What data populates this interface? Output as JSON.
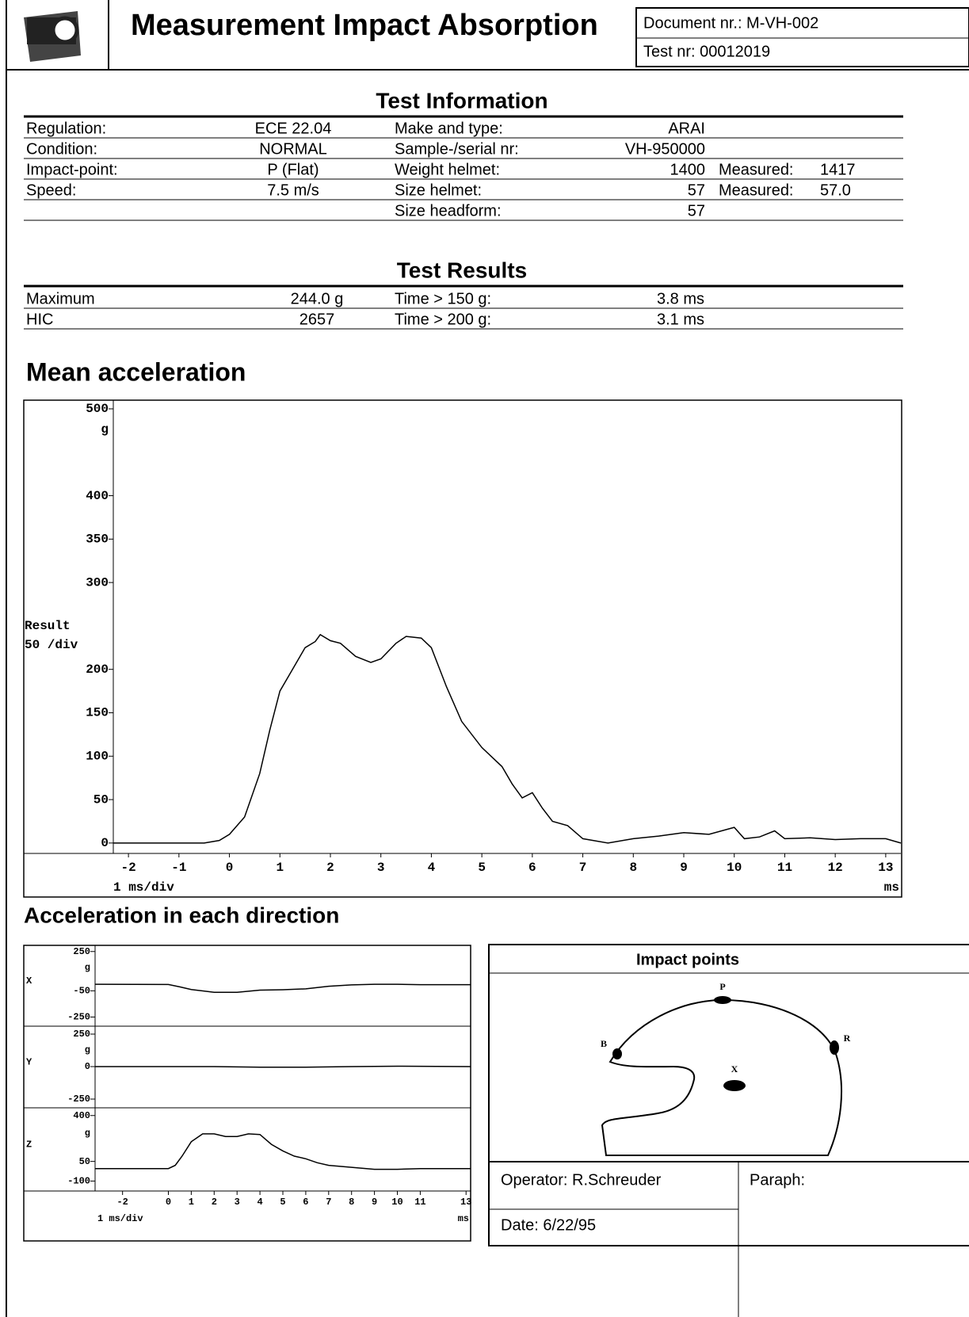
{
  "header": {
    "title": "Measurement Impact Absorption",
    "document_nr": "Document nr.: M-VH-002",
    "test_nr": "Test nr: 00012019"
  },
  "test_information": {
    "title": "Test Information",
    "rows": [
      {
        "label": "Regulation:",
        "value": "ECE 22.04",
        "label2": "Make and type:",
        "value2": "ARAI"
      },
      {
        "label": "Condition:",
        "value": "NORMAL",
        "label2": "Sample-/serial nr:",
        "value2": "VH-950000"
      },
      {
        "label": "Impact-point:",
        "value": "P  (Flat)",
        "label2": "Weight helmet:",
        "value2": "1400",
        "measured_label": "Measured:",
        "measured": "1417"
      },
      {
        "label": "Speed:",
        "value": "7.5  m/s",
        "label2": "Size helmet:",
        "value2": "57",
        "measured_label": "Measured:",
        "measured": "57.0"
      },
      {
        "label2": "Size headform:",
        "value2": "57"
      }
    ]
  },
  "test_results": {
    "title": "Test Results",
    "rows": [
      {
        "label": "Maximum",
        "value": "244.0  g",
        "label2": "Time > 150 g:",
        "value2": "3.8  ms"
      },
      {
        "label": "HIC",
        "value": "2657",
        "label2": "Time > 200 g:",
        "value2": "3.1  ms"
      }
    ]
  },
  "directions_title": "Acceleration in each direction",
  "chart_data": [
    {
      "type": "line",
      "title": "Mean acceleration",
      "color": "#000000",
      "x": [
        -2.3,
        -1,
        -0.5,
        -0.2,
        0,
        0.3,
        0.6,
        0.8,
        1.0,
        1.2,
        1.5,
        1.7,
        1.8,
        2.0,
        2.2,
        2.5,
        2.8,
        3.0,
        3.3,
        3.5,
        3.8,
        4.0,
        4.3,
        4.6,
        5.0,
        5.4,
        5.6,
        5.8,
        6.0,
        6.2,
        6.4,
        6.7,
        7.0,
        7.5,
        8.0,
        8.5,
        9.0,
        9.5,
        10.0,
        10.2,
        10.5,
        10.8,
        11.0,
        11.5,
        12.0,
        12.5,
        13.0,
        13.3
      ],
      "values": [
        0,
        0,
        0,
        3,
        10,
        30,
        80,
        130,
        175,
        195,
        225,
        232,
        240,
        233,
        230,
        215,
        208,
        212,
        230,
        238,
        236,
        225,
        180,
        140,
        110,
        88,
        68,
        52,
        58,
        40,
        25,
        20,
        5,
        0,
        5,
        8,
        12,
        10,
        18,
        5,
        7,
        14,
        5,
        6,
        4,
        5,
        5,
        0
      ],
      "xlim": [
        -2.3,
        13.3
      ],
      "ylim": [
        -12,
        510
      ],
      "xticks": [
        -2,
        -1,
        0,
        1,
        2,
        3,
        4,
        5,
        6,
        7,
        8,
        9,
        10,
        11,
        12,
        13
      ],
      "yticks": [
        0,
        50,
        100,
        150,
        200,
        300,
        350,
        400,
        500
      ],
      "y_unit": "g",
      "y_label": "Result",
      "y_scale": "50 /div",
      "x_scale": "1 ms/div",
      "x_unit": "ms"
    },
    {
      "type": "line",
      "axis_name": "X",
      "color": "#000000",
      "x": [
        -3.2,
        0,
        0.5,
        1,
        2,
        3,
        4,
        5,
        6,
        7,
        8,
        9,
        10,
        11,
        12,
        13.2
      ],
      "values": [
        0,
        -2,
        -20,
        -40,
        -62,
        -62,
        -45,
        -42,
        -35,
        -15,
        -5,
        0,
        0,
        -3,
        -3,
        -3
      ],
      "xlim": [
        -3.2,
        13.2
      ],
      "ylim": [
        -320,
        297
      ],
      "yticks": [
        -250,
        -50,
        250
      ],
      "y_unit": "g"
    },
    {
      "type": "line",
      "axis_name": "Y",
      "color": "#000000",
      "x": [
        -3.2,
        2,
        4,
        6,
        8,
        10,
        13.2
      ],
      "values": [
        0,
        0,
        -5,
        -5,
        0,
        3,
        0
      ],
      "xlim": [
        -3.2,
        13.2
      ],
      "ylim": [
        -317,
        311
      ],
      "yticks": [
        -250,
        0,
        250
      ],
      "y_unit": "g"
    },
    {
      "type": "line",
      "axis_name": "Z",
      "color": "#000000",
      "x": [
        -3.2,
        0,
        0.3,
        0.6,
        1.0,
        1.5,
        2.0,
        2.5,
        3.0,
        3.5,
        4.0,
        4.5,
        5.0,
        5.5,
        6.0,
        6.5,
        7,
        8,
        9,
        10,
        11,
        12,
        13.2
      ],
      "values": [
        -5,
        -5,
        20,
        90,
        200,
        260,
        260,
        240,
        240,
        260,
        255,
        180,
        130,
        90,
        70,
        40,
        20,
        5,
        -10,
        -10,
        -5,
        -5,
        -5
      ],
      "xlim": [
        -3.2,
        13.2
      ],
      "ylim": [
        -176,
        459
      ],
      "yticks": [
        -100,
        50,
        400
      ],
      "y_unit": "g",
      "xticks": [
        -2,
        0,
        1,
        2,
        3,
        4,
        5,
        6,
        7,
        8,
        9,
        10,
        11,
        13
      ],
      "x_scale": "1 ms/div",
      "x_unit": "ms"
    }
  ],
  "impact_points": {
    "title": "Impact points",
    "points": [
      "P",
      "B",
      "R",
      "X"
    ]
  },
  "footer": {
    "operator": "Operator:  R.Schreuder",
    "paraph": "Paraph:",
    "date": "Date: 6/22/95"
  }
}
